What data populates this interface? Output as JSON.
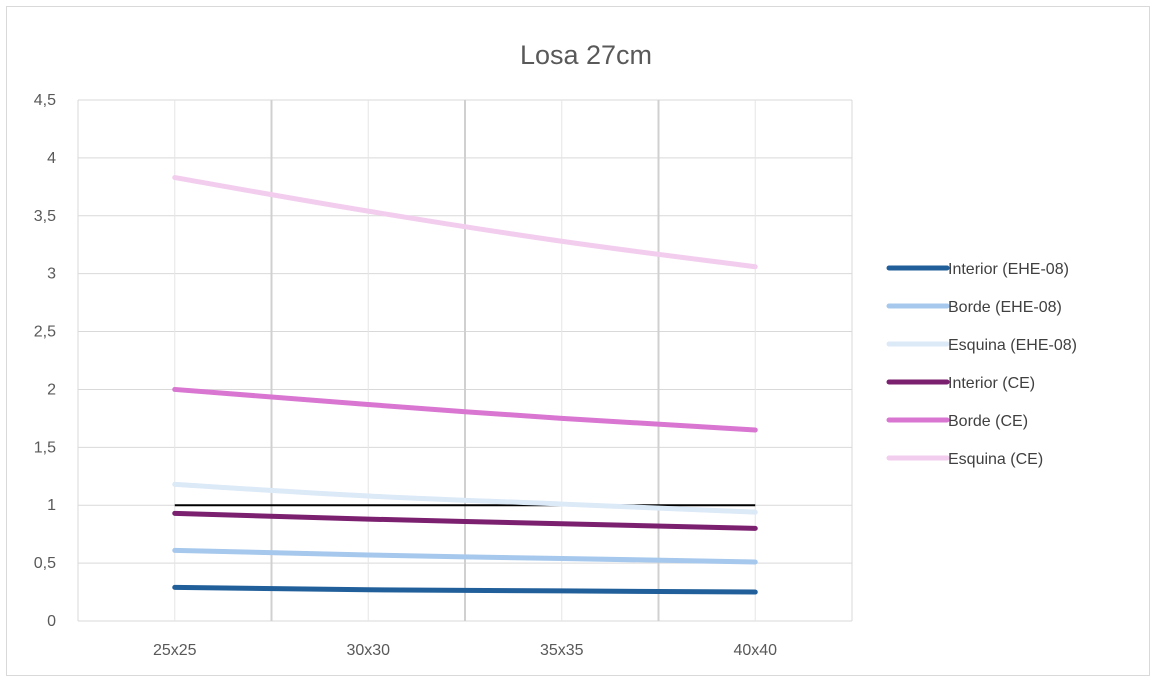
{
  "chart_data": {
    "type": "line",
    "title": "Losa 27cm",
    "xlabel": "",
    "ylabel": "",
    "categories": [
      "25x25",
      "30x30",
      "35x35",
      "40x40"
    ],
    "ylim": [
      0,
      4.5
    ],
    "yticks": [
      "0",
      "0,5",
      "1",
      "1,5",
      "2",
      "2,5",
      "3",
      "3,5",
      "4",
      "4,5"
    ],
    "grid": true,
    "legend_position": "right",
    "reference_line": {
      "value": 1,
      "color": "#000000"
    },
    "series": [
      {
        "name": "Interior (EHE-08)",
        "color": "#215f9a",
        "values": [
          0.29,
          0.27,
          0.26,
          0.25
        ]
      },
      {
        "name": "Borde  (EHE-08)",
        "color": "#a6c8ec",
        "values": [
          0.61,
          0.57,
          0.54,
          0.51
        ]
      },
      {
        "name": "Esquina  (EHE-08)",
        "color": "#dce9f7",
        "values": [
          1.18,
          1.08,
          1.01,
          0.94
        ]
      },
      {
        "name": "Interior (CE)",
        "color": "#7b1f6f",
        "values": [
          0.93,
          0.88,
          0.84,
          0.8
        ]
      },
      {
        "name": "Borde (CE)",
        "color": "#d876d1",
        "values": [
          2.0,
          1.87,
          1.75,
          1.65
        ]
      },
      {
        "name": "Esquina (CE)",
        "color": "#f2cdee",
        "values": [
          3.83,
          3.54,
          3.28,
          3.06
        ]
      }
    ]
  }
}
